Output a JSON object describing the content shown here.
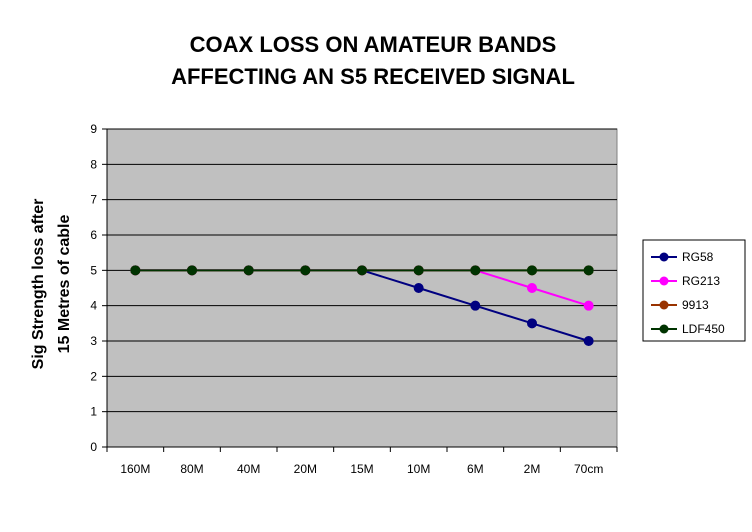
{
  "chart_data": {
    "type": "line",
    "title_lines": [
      "COAX LOSS ON AMATEUR BANDS",
      "AFFECTING AN S5 RECEIVED SIGNAL"
    ],
    "xlabel": "",
    "ylabel_lines": [
      "Sig Strength loss after",
      "15 Metres of cable"
    ],
    "categories": [
      "160M",
      "80M",
      "40M",
      "20M",
      "15M",
      "10M",
      "6M",
      "2M",
      "70cm"
    ],
    "ylim": [
      0,
      9
    ],
    "yticks": [
      0,
      1,
      2,
      3,
      4,
      5,
      6,
      7,
      8,
      9
    ],
    "grid": true,
    "legend_position": "right",
    "plot_background": "#c0c0c0",
    "series": [
      {
        "name": "RG58",
        "color": "#000080",
        "values": [
          5,
          5,
          5,
          5,
          5,
          4.5,
          4,
          3.5,
          3
        ]
      },
      {
        "name": "RG213",
        "color": "#ff00ff",
        "values": [
          5,
          5,
          5,
          5,
          5,
          5,
          5,
          4.5,
          4
        ]
      },
      {
        "name": "9913",
        "color": "#993300",
        "values": [
          5,
          5,
          5,
          5,
          5,
          5,
          5,
          5,
          5
        ]
      },
      {
        "name": "LDF450",
        "color": "#003300",
        "values": [
          5,
          5,
          5,
          5,
          5,
          5,
          5,
          5,
          5
        ]
      }
    ]
  }
}
